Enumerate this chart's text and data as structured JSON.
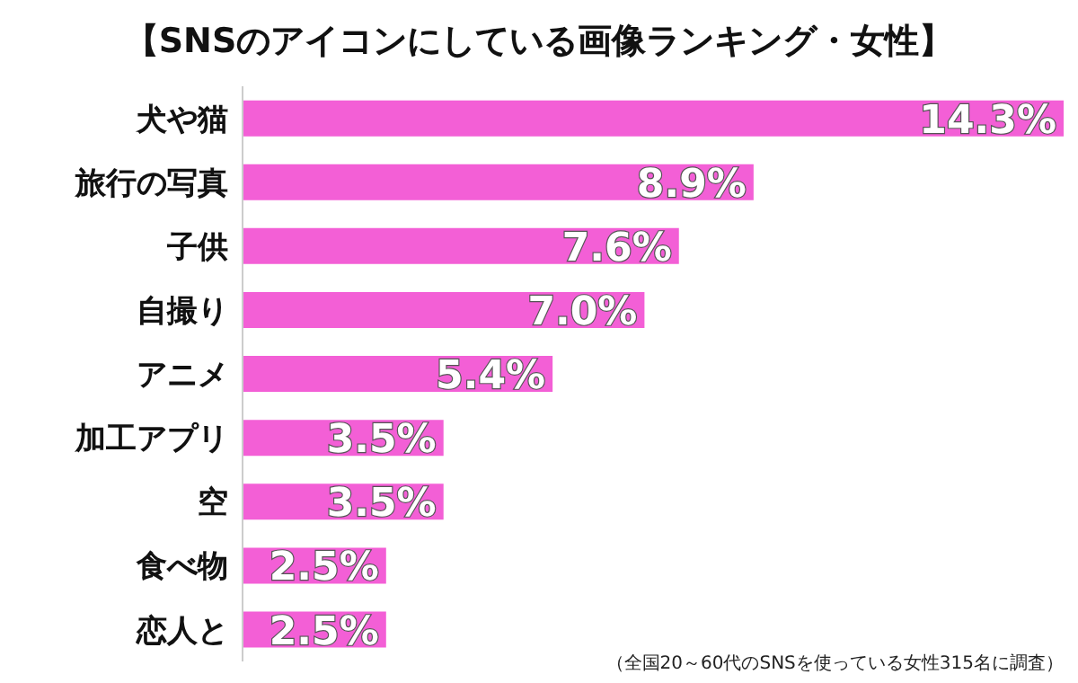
{
  "chart_data": {
    "type": "bar",
    "orientation": "horizontal",
    "title": "【SNSのアイコンにしている画像ランキング・女性】",
    "categories": [
      "犬や猫",
      "旅行の写真",
      "子供",
      "自撮り",
      "アニメ",
      "加工アプリ",
      "空",
      "食べ物",
      "恋人と"
    ],
    "values": [
      14.3,
      8.9,
      7.6,
      7.0,
      5.4,
      3.5,
      3.5,
      2.5,
      2.5
    ],
    "value_labels": [
      "14.3%",
      "8.9%",
      "7.6%",
      "7.0%",
      "5.4%",
      "3.5%",
      "3.5%",
      "2.5%",
      "2.5%"
    ],
    "color": "#f35fd6",
    "annotations": [
      "（全国20～60代のSNSを使っている女性315名に調査）"
    ]
  }
}
